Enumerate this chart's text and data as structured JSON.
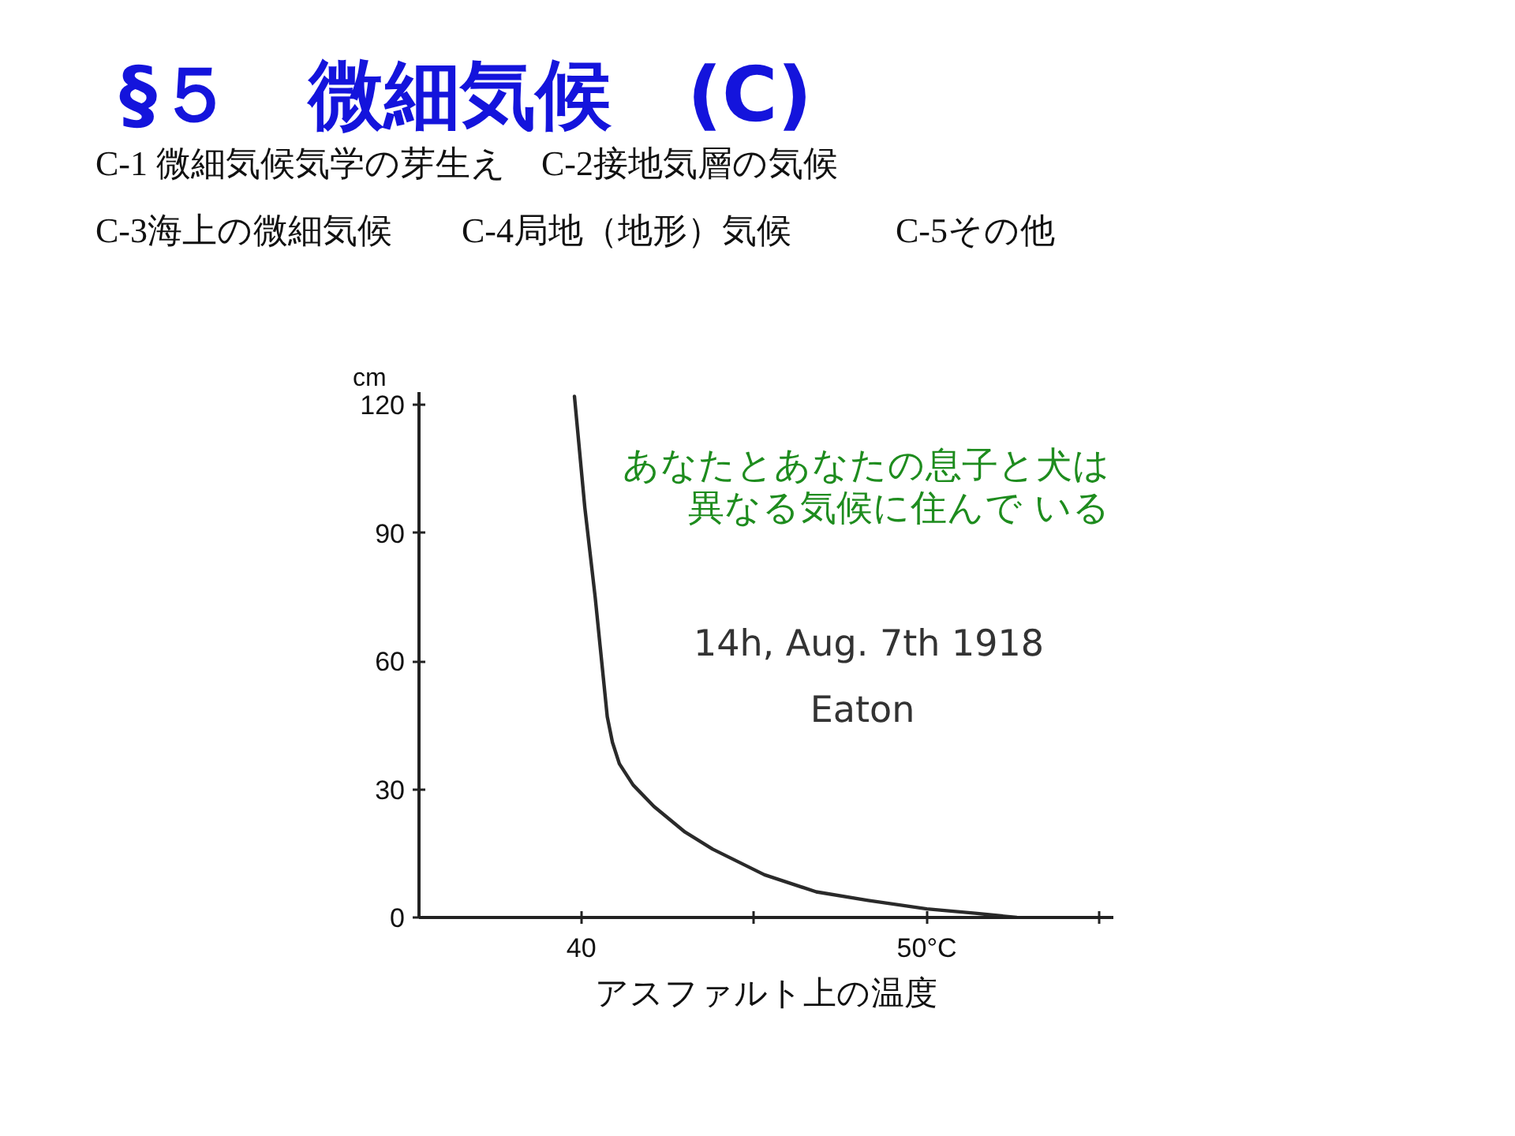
{
  "chart_data": {
    "type": "line",
    "title": "§５　微細気候　(C)",
    "subtitle": "C-1 微細気候気学の芽生え　C-2接地気層の気候\nC-3海上の微細気候　　C-4局地（地形）気候　　　C-5その他",
    "xlabel": "アスファルト上の温度",
    "ylabel": "cm",
    "annotations": [
      "あなたとあなたの息子と犬は",
      "異なる気候に住んで いる",
      "14h, Aug. 7th 1918",
      "Eaton"
    ],
    "x": [
      39.8,
      40.1,
      40.4,
      40.6,
      40.75,
      40.9,
      41.1,
      41.5,
      42.1,
      43.0,
      43.8,
      45.3,
      46.8,
      48.3,
      50.0,
      51.4,
      52.6
    ],
    "values": [
      122,
      96,
      75,
      59,
      47,
      41,
      36,
      31,
      26,
      20,
      16,
      10,
      6,
      4,
      2,
      1,
      0
    ],
    "color": "#2a2a2a",
    "xlim": [
      35.3,
      55.4
    ],
    "ylim": [
      0,
      123
    ],
    "xticks": [
      40,
      {
        "value": 45,
        "label": null
      },
      {
        "value": 50,
        "label": "50°C"
      },
      {
        "value": 55,
        "label": null
      }
    ],
    "yticks": [
      0,
      30,
      60,
      90,
      120
    ],
    "grid": false,
    "marker": "none",
    "line_style": "solid"
  }
}
